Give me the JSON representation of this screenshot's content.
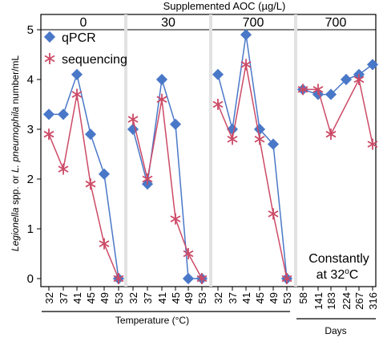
{
  "chart_data": {
    "type": "line",
    "title": "Supplemented AOC (µg/L)",
    "ylabel_italic_1": "Legionella",
    "ylabel_mid": " spp. or ",
    "ylabel_italic_2": "L. pneumophila",
    "ylabel_end": " number/mL",
    "ylim": [
      0,
      5.2
    ],
    "yticks": [
      "0",
      "1",
      "2",
      "3",
      "4",
      "5"
    ],
    "legend_placement": "top-left",
    "xlabel_temperature": "Temperature (°C)",
    "xlabel_days": "Days",
    "annotation_line1": "Constantly",
    "annotation_line2": "at 32°C",
    "series_colors": {
      "qPCR": "#4a78c8",
      "sequencing": "#cc4a66"
    },
    "panels": [
      {
        "panel_label": "0",
        "categories": [
          "32",
          "37",
          "41",
          "45",
          "49",
          "53"
        ],
        "series": [
          {
            "name": "qPCR",
            "values": [
              3.3,
              3.3,
              4.1,
              2.9,
              2.1,
              0
            ]
          },
          {
            "name": "sequencing",
            "values": [
              2.9,
              2.2,
              3.7,
              1.9,
              0.7,
              0
            ]
          }
        ]
      },
      {
        "panel_label": "30",
        "categories": [
          "32",
          "37",
          "41",
          "45",
          "49",
          "53"
        ],
        "series": [
          {
            "name": "qPCR",
            "values": [
              3.0,
              1.9,
              4.0,
              3.1,
              0,
              0
            ]
          },
          {
            "name": "sequencing",
            "values": [
              3.2,
              2.0,
              3.6,
              1.2,
              0.5,
              0
            ]
          }
        ]
      },
      {
        "panel_label": "700",
        "categories": [
          "32",
          "37",
          "41",
          "45",
          "49",
          "53"
        ],
        "series": [
          {
            "name": "qPCR",
            "values": [
              4.1,
              3.0,
              4.9,
              3.0,
              2.7,
              0
            ]
          },
          {
            "name": "sequencing",
            "values": [
              3.5,
              2.8,
              4.3,
              2.8,
              1.3,
              0
            ]
          }
        ]
      },
      {
        "panel_label": "700",
        "categories": [
          "58",
          "141",
          "183",
          "224",
          "267",
          "316"
        ],
        "series": [
          {
            "name": "qPCR",
            "values": [
              3.8,
              3.7,
              3.7,
              4.0,
              4.1,
              4.3
            ]
          },
          {
            "name": "sequencing",
            "values": [
              3.8,
              3.8,
              2.9,
              null,
              4.0,
              2.7
            ]
          }
        ]
      }
    ]
  }
}
